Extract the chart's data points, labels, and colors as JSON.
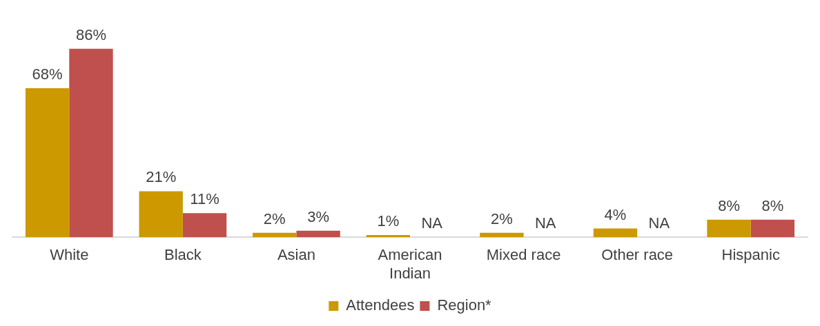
{
  "chart_data": {
    "type": "bar",
    "categories": [
      "White",
      "Black",
      "Asian",
      "American Indian",
      "Mixed race",
      "Other race",
      "Hispanic"
    ],
    "series": [
      {
        "name": "Attendees",
        "color": "#cc9900",
        "values": [
          68,
          21,
          2,
          1,
          2,
          4,
          8
        ],
        "value_labels": [
          "68%",
          "21%",
          "2%",
          "1%",
          "2%",
          "4%",
          "8%"
        ]
      },
      {
        "name": "Region*",
        "color": "#c0504d",
        "values": [
          86,
          11,
          3,
          null,
          null,
          null,
          8
        ],
        "value_labels": [
          "86%",
          "11%",
          "3%",
          "NA",
          "NA",
          "NA",
          "8%"
        ]
      }
    ],
    "legend": "bottom",
    "grid": false
  }
}
